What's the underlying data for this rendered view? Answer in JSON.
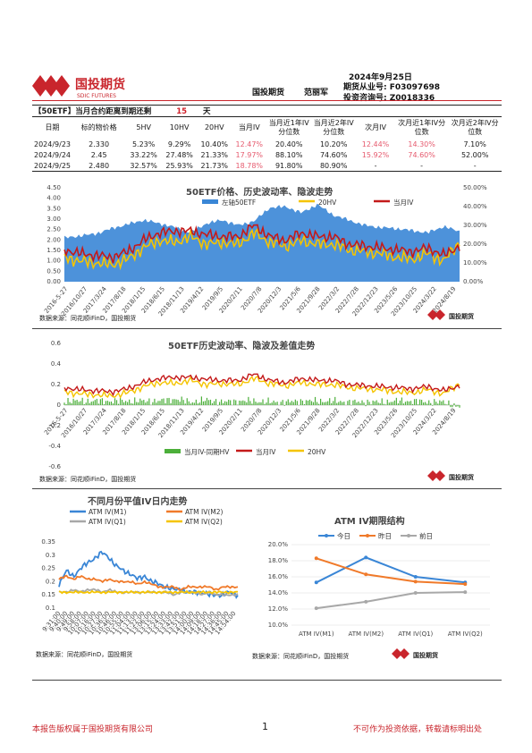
{
  "header": {
    "logo_cn": "国投期货",
    "logo_en": "SDIC FUTURES",
    "date": "2024年9月25日",
    "company": "国投期货",
    "analyst": "范丽军",
    "license1": "期货从业号: F03097698",
    "license2": "投资咨询号: Z0018336"
  },
  "banner": {
    "label": "【50ETF】当月合约距离到期还剩",
    "days": "15",
    "unit": "天"
  },
  "table": {
    "headers": [
      "日期",
      "标的物价格",
      "5HV",
      "10HV",
      "20HV",
      "当月IV",
      "当月近1年IV分位数",
      "当月近2年IV分位数",
      "次月IV",
      "次月近1年IV分位数",
      "次月近2年IV分位数"
    ],
    "rows": [
      [
        "2024/9/23",
        "2.330",
        "5.23%",
        "9.29%",
        "10.40%",
        "12.47%",
        "20.40%",
        "10.20%",
        "12.44%",
        "14.30%",
        "7.10%"
      ],
      [
        "2024/9/24",
        "2.45",
        "33.22%",
        "27.48%",
        "21.33%",
        "17.97%",
        "88.10%",
        "74.60%",
        "15.92%",
        "74.60%",
        "52.00%"
      ],
      [
        "2024/9/25",
        "2.480",
        "32.57%",
        "25.93%",
        "21.73%",
        "18.78%",
        "91.80%",
        "80.90%",
        "-",
        "-",
        "-"
      ]
    ]
  },
  "source_text": "数据来源：同花顺iFinD，国投期货",
  "chart_data": [
    {
      "type": "area",
      "title": "50ETF价格、历史波动率、隐波走势",
      "legend": [
        "左轴50ETF",
        "20HV",
        "当月IV"
      ],
      "colors": {
        "etf": "#3a86d6",
        "hv": "#f5c400",
        "iv": "#c41a1a"
      },
      "y_left": {
        "min": 0,
        "max": 4.5,
        "ticks": [
          "0.00",
          "0.50",
          "1.00",
          "1.50",
          "2.00",
          "2.50",
          "3.00",
          "3.50",
          "4.00",
          "4.50"
        ]
      },
      "y_right": {
        "min": 0,
        "max": 0.5,
        "ticks": [
          "0.00%",
          "10.00%",
          "20.00%",
          "30.00%",
          "40.00%",
          "50.00%"
        ]
      },
      "x_ticks": [
        "2016-5-27",
        "2016/10/27",
        "2017/3/24",
        "2017/8/18",
        "2018/1/15",
        "2018/6/15",
        "2018/11/13",
        "2019/4/12",
        "2019/9/5",
        "2020/2/11",
        "2020/7/8",
        "2020/12/3",
        "2021/5/6",
        "2021/9/28",
        "2022/3/2",
        "2022/7/28",
        "2022/12/23",
        "2023/5/26",
        "2023/10/25",
        "2024/3/22",
        "2024/8/19"
      ],
      "etf": [
        2.1,
        2.2,
        2.3,
        2.55,
        2.75,
        2.95,
        2.8,
        2.6,
        2.35,
        2.8,
        2.95,
        2.7,
        2.9,
        3.55,
        3.6,
        3.3,
        3.7,
        3.2,
        2.95,
        2.7,
        2.6,
        2.55,
        2.45,
        2.35,
        2.65,
        2.4
      ],
      "hv": [
        0.13,
        0.11,
        0.1,
        0.09,
        0.12,
        0.18,
        0.22,
        0.21,
        0.24,
        0.2,
        0.21,
        0.2,
        0.26,
        0.21,
        0.19,
        0.22,
        0.2,
        0.2,
        0.17,
        0.16,
        0.15,
        0.13,
        0.12,
        0.15,
        0.11,
        0.21
      ],
      "iv": [
        0.17,
        0.15,
        0.14,
        0.13,
        0.16,
        0.22,
        0.26,
        0.27,
        0.27,
        0.25,
        0.24,
        0.24,
        0.3,
        0.24,
        0.22,
        0.26,
        0.24,
        0.24,
        0.2,
        0.19,
        0.18,
        0.17,
        0.16,
        0.18,
        0.14,
        0.19
      ]
    },
    {
      "type": "bar",
      "title": "50ETF历史波动率、隐波及差值走势",
      "legend": [
        "当月IV-同期HV",
        "当月IV",
        "20HV"
      ],
      "colors": {
        "diff": "#4caf3a",
        "iv": "#c41a1a",
        "hv": "#f5c400"
      },
      "y": {
        "min": -0.6,
        "max": 0.6,
        "ticks": [
          "0.6",
          "0.4",
          "0.2",
          "0",
          "-0.2",
          "-0.4",
          "-0.6"
        ]
      },
      "x_ticks": [
        "2016-5-27",
        "2016/10/27",
        "2017/3/24",
        "2017/8/18",
        "2018/1/15",
        "2018/6/15",
        "2018/11/13",
        "2019/4/12",
        "2019/9/5",
        "2020/2/11",
        "2020/7/8",
        "2020/12/3",
        "2021/5/6",
        "2021/9/28",
        "2022/3/2",
        "2022/7/28",
        "2022/12/23",
        "2023/5/26",
        "2023/10/25",
        "2024/3/22",
        "2024/8/19"
      ]
    },
    {
      "type": "line",
      "title": "不同月份平值IV日内走势",
      "legend": [
        "ATM IV(M1)",
        "ATM IV(M2)",
        "ATM IV(Q1)",
        "ATM IV(Q2)"
      ],
      "colors": [
        "#3a86d6",
        "#f07a2a",
        "#a8a8a8",
        "#f5c400"
      ],
      "y": {
        "min": 0.1,
        "max": 0.35,
        "ticks": [
          "0.35",
          "0.3",
          "0.25",
          "0.2",
          "0.15",
          "0.1"
        ]
      },
      "x_ticks": [
        "9:31:00",
        "9:40:00",
        "9:49:00",
        "9:58:00",
        "10:07:00",
        "10:16:00",
        "10:27:00",
        "10:36:00",
        "10:46:00",
        "10:55:00",
        "11:04:00",
        "11:13:00",
        "11:22:00",
        "13:06:00",
        "13:15:00",
        "13:24:00",
        "13:33:00",
        "13:42:00",
        "13:51:00",
        "14:00:00",
        "14:09:00",
        "14:18:00",
        "14:27:00",
        "14:36:00",
        "14:45:00",
        "14:54:00"
      ],
      "M1": [
        0.19,
        0.24,
        0.22,
        0.25,
        0.27,
        0.29,
        0.31,
        0.29,
        0.26,
        0.24,
        0.23,
        0.21,
        0.22,
        0.2,
        0.19,
        0.18,
        0.17,
        0.17,
        0.16,
        0.16,
        0.16,
        0.15,
        0.15,
        0.15,
        0.16,
        0.15
      ],
      "M2": [
        0.21,
        0.22,
        0.21,
        0.22,
        0.21,
        0.21,
        0.2,
        0.21,
        0.2,
        0.2,
        0.2,
        0.19,
        0.2,
        0.19,
        0.18,
        0.18,
        0.18,
        0.17,
        0.18,
        0.18,
        0.18,
        0.18,
        0.17,
        0.18,
        0.18,
        0.18
      ],
      "Q1": [
        0.16,
        0.16,
        0.17,
        0.16,
        0.17,
        0.17,
        0.16,
        0.17,
        0.16,
        0.16,
        0.16,
        0.16,
        0.16,
        0.16,
        0.16,
        0.16,
        0.15,
        0.16,
        0.16,
        0.16,
        0.15,
        0.16,
        0.15,
        0.15,
        0.15,
        0.15
      ],
      "Q2": [
        0.16,
        0.16,
        0.16,
        0.16,
        0.16,
        0.16,
        0.16,
        0.16,
        0.16,
        0.16,
        0.16,
        0.16,
        0.16,
        0.16,
        0.16,
        0.16,
        0.16,
        0.16,
        0.16,
        0.16,
        0.16,
        0.16,
        0.16,
        0.16,
        0.16,
        0.16
      ]
    },
    {
      "type": "line",
      "title": "ATM IV期限结构",
      "legend": [
        "今日",
        "昨日",
        "前日"
      ],
      "colors": [
        "#3a86d6",
        "#f07a2a",
        "#a8a8a8"
      ],
      "categories": [
        "ATM IV(M1)",
        "ATM IV(M2)",
        "ATM IV(Q1)",
        "ATM IV(Q2)"
      ],
      "y": {
        "min": 0.1,
        "max": 0.2,
        "ticks": [
          "20.0%",
          "18.0%",
          "16.0%",
          "14.0%",
          "12.0%",
          "10.0%"
        ]
      },
      "series": [
        {
          "name": "今日",
          "values": [
            0.153,
            0.184,
            0.16,
            0.153
          ]
        },
        {
          "name": "昨日",
          "values": [
            0.183,
            0.163,
            0.154,
            0.151
          ]
        },
        {
          "name": "前日",
          "values": [
            0.121,
            0.129,
            0.14,
            0.141
          ]
        }
      ]
    }
  ],
  "footer": {
    "left": "本报告版权属于国投期货有限公司",
    "page": "1",
    "right": "不可作为投资依据，转载请标明出处"
  }
}
